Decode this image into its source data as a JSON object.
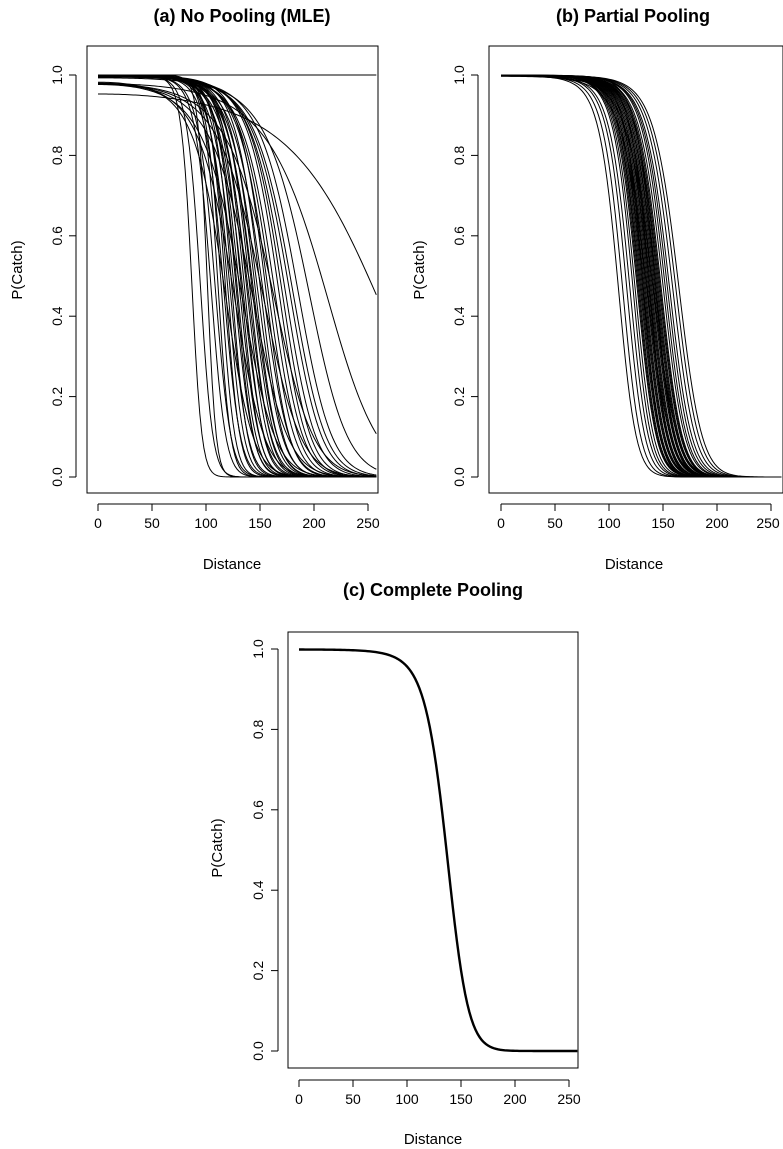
{
  "chart_data": [
    {
      "id": "a",
      "type": "line",
      "title": "(a) No Pooling (MLE)",
      "xlabel": "Distance",
      "ylabel": "P(Catch)",
      "xlim": [
        0,
        260
      ],
      "ylim": [
        0,
        1
      ],
      "xticks": [
        "0",
        "50",
        "100",
        "150",
        "200",
        "250"
      ],
      "yticks": [
        "0.0",
        "0.2",
        "0.4",
        "0.6",
        "0.8",
        "1.0"
      ],
      "grid": false,
      "legend": "none",
      "model": "logistic in distance squared: P = 1 / (1 + exp((d^2 - m^2) / s^2)), m = distance at P = 0.5",
      "series": [
        {
          "m": 90,
          "s": 30
        },
        {
          "m": 98,
          "s": 35
        },
        {
          "m": 105,
          "s": 30
        },
        {
          "m": 108,
          "s": 40
        },
        {
          "m": 112,
          "s": 42
        },
        {
          "m": 115,
          "s": 38
        },
        {
          "m": 118,
          "s": 40
        },
        {
          "m": 120,
          "s": 45
        },
        {
          "m": 122,
          "s": 42
        },
        {
          "m": 124,
          "s": 45
        },
        {
          "m": 126,
          "s": 48
        },
        {
          "m": 128,
          "s": 45
        },
        {
          "m": 130,
          "s": 50
        },
        {
          "m": 132,
          "s": 48
        },
        {
          "m": 133,
          "s": 50
        },
        {
          "m": 135,
          "s": 52
        },
        {
          "m": 137,
          "s": 50
        },
        {
          "m": 138,
          "s": 55
        },
        {
          "m": 140,
          "s": 52
        },
        {
          "m": 142,
          "s": 55
        },
        {
          "m": 143,
          "s": 58
        },
        {
          "m": 145,
          "s": 55
        },
        {
          "m": 147,
          "s": 58
        },
        {
          "m": 148,
          "s": 60
        },
        {
          "m": 150,
          "s": 58
        },
        {
          "m": 152,
          "s": 62
        },
        {
          "m": 155,
          "s": 60
        },
        {
          "m": 157,
          "s": 65
        },
        {
          "m": 160,
          "s": 62
        },
        {
          "m": 162,
          "s": 66
        },
        {
          "m": 165,
          "s": 68
        },
        {
          "m": 168,
          "s": 70
        },
        {
          "m": 172,
          "s": 70
        },
        {
          "m": 175,
          "s": 72
        },
        {
          "m": 178,
          "s": 75
        },
        {
          "m": 182,
          "s": 78
        },
        {
          "m": 185,
          "s": 80
        },
        {
          "m": 190,
          "s": 82
        },
        {
          "m": 120,
          "s": 60
        },
        {
          "m": 128,
          "s": 65
        },
        {
          "m": 135,
          "s": 70
        },
        {
          "m": 145,
          "s": 75
        },
        {
          "m": 155,
          "s": 80
        },
        {
          "m": 165,
          "s": 85
        },
        {
          "m": 200,
          "s": 90
        },
        {
          "m": 215,
          "s": 110
        },
        {
          "m": 260,
          "s": 150
        },
        {
          "m": 2000,
          "s": 600
        }
      ]
    },
    {
      "id": "b",
      "type": "line",
      "title": "(b) Partial Pooling",
      "xlabel": "Distance",
      "ylabel": "P(Catch)",
      "xlim": [
        0,
        260
      ],
      "ylim": [
        0,
        1
      ],
      "xticks": [
        "0",
        "50",
        "100",
        "150",
        "200",
        "250"
      ],
      "yticks": [
        "0.0",
        "0.2",
        "0.4",
        "0.6",
        "0.8",
        "1.0"
      ],
      "grid": false,
      "legend": "none",
      "model": "logistic in distance squared: P = 1 / (1 + exp((d^2 - m^2) / s^2)), m = distance at P = 0.5",
      "series": [
        {
          "m": 112,
          "s": 45
        },
        {
          "m": 116,
          "s": 46
        },
        {
          "m": 120,
          "s": 47
        },
        {
          "m": 123,
          "s": 48
        },
        {
          "m": 126,
          "s": 48
        },
        {
          "m": 128,
          "s": 49
        },
        {
          "m": 130,
          "s": 50
        },
        {
          "m": 131,
          "s": 50
        },
        {
          "m": 132,
          "s": 50
        },
        {
          "m": 133,
          "s": 51
        },
        {
          "m": 134,
          "s": 51
        },
        {
          "m": 135,
          "s": 51
        },
        {
          "m": 136,
          "s": 52
        },
        {
          "m": 137,
          "s": 52
        },
        {
          "m": 138,
          "s": 52
        },
        {
          "m": 139,
          "s": 53
        },
        {
          "m": 140,
          "s": 53
        },
        {
          "m": 141,
          "s": 53
        },
        {
          "m": 142,
          "s": 54
        },
        {
          "m": 143,
          "s": 54
        },
        {
          "m": 144,
          "s": 54
        },
        {
          "m": 145,
          "s": 55
        },
        {
          "m": 146,
          "s": 55
        },
        {
          "m": 147,
          "s": 55
        },
        {
          "m": 148,
          "s": 56
        },
        {
          "m": 149,
          "s": 56
        },
        {
          "m": 150,
          "s": 56
        },
        {
          "m": 151,
          "s": 57
        },
        {
          "m": 152,
          "s": 57
        },
        {
          "m": 153,
          "s": 57
        },
        {
          "m": 155,
          "s": 58
        },
        {
          "m": 157,
          "s": 58
        },
        {
          "m": 159,
          "s": 59
        },
        {
          "m": 161,
          "s": 60
        },
        {
          "m": 164,
          "s": 61
        },
        {
          "m": 167,
          "s": 62
        },
        {
          "m": 170,
          "s": 63
        },
        {
          "m": 136,
          "s": 48
        },
        {
          "m": 142,
          "s": 50
        },
        {
          "m": 148,
          "s": 52
        },
        {
          "m": 145,
          "s": 60
        },
        {
          "m": 139,
          "s": 58
        }
      ]
    },
    {
      "id": "c",
      "type": "line",
      "title": "(c) Complete Pooling",
      "xlabel": "Distance",
      "ylabel": "P(Catch)",
      "xlim": [
        0,
        260
      ],
      "ylim": [
        0,
        1
      ],
      "xticks": [
        "0",
        "50",
        "100",
        "150",
        "200",
        "250"
      ],
      "yticks": [
        "0.0",
        "0.2",
        "0.4",
        "0.6",
        "0.8",
        "1.0"
      ],
      "grid": false,
      "legend": "none",
      "model": "logistic in distance squared: P = 1 / (1 + exp((d^2 - m^2) / s^2)), m = distance at P = 0.5",
      "series": [
        {
          "m": 142,
          "s": 55
        }
      ]
    }
  ]
}
